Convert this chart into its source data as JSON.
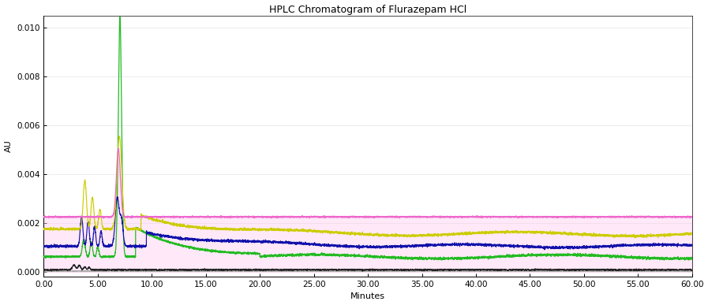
{
  "title": "HPLC Chromatogram of Flurazepam HCl",
  "xlabel": "Minutes",
  "ylabel": "AU",
  "xlim": [
    0,
    60
  ],
  "ylim": [
    -0.0002,
    0.0105
  ],
  "yticks": [
    0.0,
    0.002,
    0.004,
    0.006,
    0.008,
    0.01
  ],
  "xticks": [
    0.0,
    5.0,
    10.0,
    15.0,
    20.0,
    25.0,
    30.0,
    35.0,
    40.0,
    45.0,
    50.0,
    55.0,
    60.0
  ],
  "background_color": "#ffffff",
  "title_fontsize": 9,
  "axis_fontsize": 8,
  "tick_fontsize": 7.5
}
